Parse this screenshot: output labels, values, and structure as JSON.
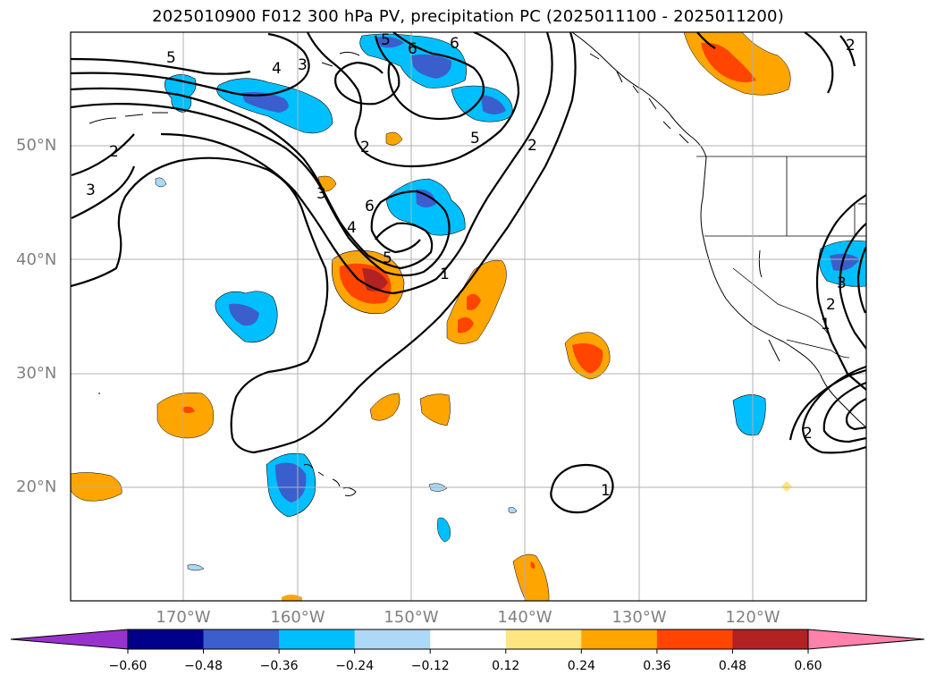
{
  "title": "2025010900 F012 300 hPa PV, precipitation PC (2025011100 - 2025011200)",
  "map": {
    "projection": "PlateCarree",
    "lon_range": [
      -180,
      -110
    ],
    "lat_range": [
      10,
      60
    ],
    "grid": true,
    "lat_ticks": [
      "50°N",
      "40°N",
      "30°N",
      "20°N"
    ],
    "lon_ticks": [
      "170°W",
      "160°W",
      "150°W",
      "140°W",
      "130°W",
      "120°W"
    ],
    "contour_variable": "300 hPa PV",
    "contour_labels": [
      "5",
      "4",
      "3",
      "6",
      "5",
      "2",
      "2",
      "6",
      "5",
      "4",
      "3",
      "2",
      "1",
      "3",
      "6",
      "5",
      "1",
      "2",
      "3",
      "1",
      "2",
      "2"
    ],
    "shaded_variable": "precipitation PC"
  },
  "colorbar": {
    "orientation": "horizontal",
    "extend": "both",
    "levels": [
      -0.6,
      -0.48,
      -0.36,
      -0.24,
      -0.12,
      0.12,
      0.24,
      0.36,
      0.48,
      0.6
    ],
    "tick_labels": [
      "−0.60",
      "−0.48",
      "−0.36",
      "−0.24",
      "−0.12",
      "0.12",
      "0.24",
      "0.36",
      "0.48",
      "0.60"
    ],
    "colors": [
      "#9932cc",
      "#00008b",
      "#3a5fcd",
      "#00bfff",
      "#add8f6",
      "#ffffff",
      "#ffe680",
      "#ffa500",
      "#ff4500",
      "#b22222",
      "#ff82ab"
    ]
  },
  "colors": {
    "land_outline": "#000000",
    "contour": "#000000",
    "grid": "#b0b0b0",
    "tick_text": "#808080"
  }
}
